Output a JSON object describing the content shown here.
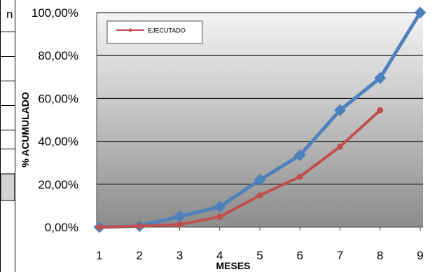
{
  "fragment_letter": "n",
  "chart_data": {
    "type": "line",
    "categories": [
      "1",
      "2",
      "3",
      "4",
      "5",
      "6",
      "7",
      "8",
      "9"
    ],
    "x": [
      1,
      2,
      3,
      4,
      5,
      6,
      7,
      8,
      9
    ],
    "y_tick_labels": [
      "0,00%",
      "20,00%",
      "40,00%",
      "60,00%",
      "80,00%",
      "100,00%"
    ],
    "y_ticks": [
      0,
      20,
      40,
      60,
      80,
      100
    ],
    "ylim": [
      0,
      100
    ],
    "xlabel": "MESES",
    "ylabel": "% ACUMULADO",
    "grid": true,
    "legend_position": "top-left",
    "series": [
      {
        "color": "#4F81BD",
        "marker": "diamond",
        "values": [
          0,
          0.5,
          5,
          9.5,
          22,
          33.5,
          54.5,
          69.5,
          100
        ]
      },
      {
        "name": "EJECUTADO",
        "color": "#C0504D",
        "marker": "circle",
        "values": [
          0,
          0.5,
          1.2,
          4.8,
          14.8,
          23.5,
          37.5,
          54.5,
          null
        ]
      }
    ]
  }
}
